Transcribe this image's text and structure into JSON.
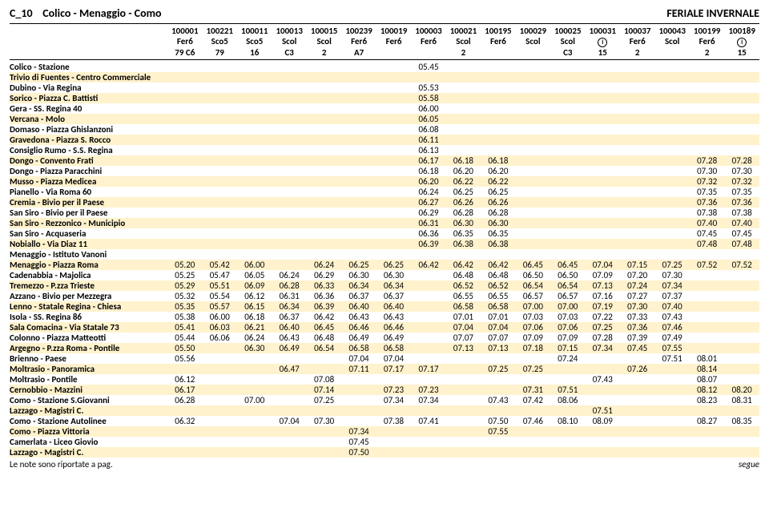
{
  "title_left": "C_10",
  "title_mid": "Colico - Menaggio - Como",
  "title_right": "FERIALE INVERNALE",
  "footer_left": "Le note sono riportate a pag.",
  "footer_right": "segue",
  "highlight_bg": "#fff2cc",
  "run_codes": [
    "100001",
    "100221",
    "100011",
    "100013",
    "100015",
    "100239",
    "100019",
    "100003",
    "100021",
    "100195",
    "100029",
    "100025",
    "100031",
    "100037",
    "100043",
    "100199",
    "100189"
  ],
  "run_type": [
    "Fer6",
    "Sco5",
    "Sco5",
    "Scol",
    "Scol",
    "Fer6",
    "Fer6",
    "Fer6",
    "Scol",
    "Fer6",
    "Scol",
    "Scol",
    "ⓘ",
    "Fer6",
    "Scol",
    "Fer6",
    "ⓘ"
  ],
  "run_note": [
    "79 C6",
    "79",
    "16",
    "C3",
    "2",
    "A7",
    "",
    "",
    "2",
    "",
    "",
    "C3",
    "15",
    "2",
    "",
    "2",
    "15"
  ],
  "rows": [
    {
      "label": "Colico - Stazione",
      "hl": false,
      "v": [
        "",
        "",
        "",
        "",
        "",
        "",
        "",
        "05.45",
        "",
        "",
        "",
        "",
        "",
        "",
        "",
        "",
        ""
      ]
    },
    {
      "label": "Trivio di Fuentes - Centro Commerciale",
      "hl": true,
      "v": [
        "",
        "",
        "",
        "",
        "",
        "",
        "",
        "",
        "",
        "",
        "",
        "",
        "",
        "",
        "",
        "",
        ""
      ]
    },
    {
      "label": "Dubino - Via Regina",
      "hl": false,
      "v": [
        "",
        "",
        "",
        "",
        "",
        "",
        "",
        "05.53",
        "",
        "",
        "",
        "",
        "",
        "",
        "",
        "",
        ""
      ]
    },
    {
      "label": "Sorico - Piazza C. Battisti",
      "hl": true,
      "v": [
        "",
        "",
        "",
        "",
        "",
        "",
        "",
        "05.58",
        "",
        "",
        "",
        "",
        "",
        "",
        "",
        "",
        ""
      ]
    },
    {
      "label": "Gera - SS. Regina 40",
      "hl": false,
      "v": [
        "",
        "",
        "",
        "",
        "",
        "",
        "",
        "06.00",
        "",
        "",
        "",
        "",
        "",
        "",
        "",
        "",
        ""
      ]
    },
    {
      "label": "Vercana - Molo",
      "hl": true,
      "v": [
        "",
        "",
        "",
        "",
        "",
        "",
        "",
        "06.05",
        "",
        "",
        "",
        "",
        "",
        "",
        "",
        "",
        ""
      ]
    },
    {
      "label": "Domaso - Piazza Ghislanzoni",
      "hl": false,
      "v": [
        "",
        "",
        "",
        "",
        "",
        "",
        "",
        "06.08",
        "",
        "",
        "",
        "",
        "",
        "",
        "",
        "",
        ""
      ]
    },
    {
      "label": "Gravedona - Piazza S. Rocco",
      "hl": true,
      "v": [
        "",
        "",
        "",
        "",
        "",
        "",
        "",
        "06.11",
        "",
        "",
        "",
        "",
        "",
        "",
        "",
        "",
        ""
      ]
    },
    {
      "label": "Consiglio Rumo - S.S. Regina",
      "hl": false,
      "v": [
        "",
        "",
        "",
        "",
        "",
        "",
        "",
        "06.13",
        "",
        "",
        "",
        "",
        "",
        "",
        "",
        "",
        ""
      ]
    },
    {
      "label": "Dongo - Convento Frati",
      "hl": true,
      "v": [
        "",
        "",
        "",
        "",
        "",
        "",
        "",
        "06.17",
        "06.18",
        "06.18",
        "",
        "",
        "",
        "",
        "",
        "07.28",
        "07.28"
      ]
    },
    {
      "label": "Dongo - Piazza Paracchini",
      "hl": false,
      "v": [
        "",
        "",
        "",
        "",
        "",
        "",
        "",
        "06.18",
        "06.20",
        "06.20",
        "",
        "",
        "",
        "",
        "",
        "07.30",
        "07.30"
      ]
    },
    {
      "label": "Musso - Piazza Medicea",
      "hl": true,
      "v": [
        "",
        "",
        "",
        "",
        "",
        "",
        "",
        "06.20",
        "06.22",
        "06.22",
        "",
        "",
        "",
        "",
        "",
        "07.32",
        "07.32"
      ]
    },
    {
      "label": "Pianello - Via Roma 60",
      "hl": false,
      "v": [
        "",
        "",
        "",
        "",
        "",
        "",
        "",
        "06.24",
        "06.25",
        "06.25",
        "",
        "",
        "",
        "",
        "",
        "07.35",
        "07.35"
      ]
    },
    {
      "label": "Cremia - Bivio per il Paese",
      "hl": true,
      "v": [
        "",
        "",
        "",
        "",
        "",
        "",
        "",
        "06.27",
        "06.26",
        "06.26",
        "",
        "",
        "",
        "",
        "",
        "07.36",
        "07.36"
      ]
    },
    {
      "label": "San Siro - Bivio per il Paese",
      "hl": false,
      "v": [
        "",
        "",
        "",
        "",
        "",
        "",
        "",
        "06.29",
        "06.28",
        "06.28",
        "",
        "",
        "",
        "",
        "",
        "07.38",
        "07.38"
      ]
    },
    {
      "label": "San Siro - Rezzonico - Municipio",
      "hl": true,
      "v": [
        "",
        "",
        "",
        "",
        "",
        "",
        "",
        "06.31",
        "06.30",
        "06.30",
        "",
        "",
        "",
        "",
        "",
        "07.40",
        "07.40"
      ]
    },
    {
      "label": "San Siro - Acquaseria",
      "hl": false,
      "v": [
        "",
        "",
        "",
        "",
        "",
        "",
        "",
        "06.36",
        "06.35",
        "06.35",
        "",
        "",
        "",
        "",
        "",
        "07.45",
        "07.45"
      ]
    },
    {
      "label": "Nobiallo - Via Diaz 11",
      "hl": true,
      "v": [
        "",
        "",
        "",
        "",
        "",
        "",
        "",
        "06.39",
        "06.38",
        "06.38",
        "",
        "",
        "",
        "",
        "",
        "07.48",
        "07.48"
      ]
    },
    {
      "label": "Menaggio - Istituto Vanoni",
      "hl": false,
      "v": [
        "",
        "",
        "",
        "",
        "",
        "",
        "",
        "",
        "",
        "",
        "",
        "",
        "",
        "",
        "",
        "",
        ""
      ]
    },
    {
      "label": "Menaggio - Piazza Roma",
      "hl": true,
      "v": [
        "05.20",
        "05.42",
        "06.00",
        "",
        "06.24",
        "06.25",
        "06.25",
        "06.42",
        "06.42",
        "06.42",
        "06.45",
        "06.45",
        "07.04",
        "07.15",
        "07.25",
        "07.52",
        "07.52"
      ]
    },
    {
      "label": "Cadenabbia - Majolica",
      "hl": false,
      "v": [
        "05.25",
        "05.47",
        "06.05",
        "06.24",
        "06.29",
        "06.30",
        "06.30",
        "",
        "06.48",
        "06.48",
        "06.50",
        "06.50",
        "07.09",
        "07.20",
        "07.30",
        "",
        ""
      ]
    },
    {
      "label": "Tremezzo - P.zza Trieste",
      "hl": true,
      "v": [
        "05.29",
        "05.51",
        "06.09",
        "06.28",
        "06.33",
        "06.34",
        "06.34",
        "",
        "06.52",
        "06.52",
        "06.54",
        "06.54",
        "07.13",
        "07.24",
        "07.34",
        "",
        ""
      ]
    },
    {
      "label": "Azzano - Bivio per Mezzegra",
      "hl": false,
      "v": [
        "05.32",
        "05.54",
        "06.12",
        "06.31",
        "06.36",
        "06.37",
        "06.37",
        "",
        "06.55",
        "06.55",
        "06.57",
        "06.57",
        "07.16",
        "07.27",
        "07.37",
        "",
        ""
      ]
    },
    {
      "label": "Lenno - Statale Regina - Chiesa",
      "hl": true,
      "v": [
        "05.35",
        "05.57",
        "06.15",
        "06.34",
        "06.39",
        "06.40",
        "06.40",
        "",
        "06.58",
        "06.58",
        "07.00",
        "07.00",
        "07.19",
        "07.30",
        "07.40",
        "",
        ""
      ]
    },
    {
      "label": "Isola - SS. Regina 86",
      "hl": false,
      "v": [
        "05.38",
        "06.00",
        "06.18",
        "06.37",
        "06.42",
        "06.43",
        "06.43",
        "",
        "07.01",
        "07.01",
        "07.03",
        "07.03",
        "07.22",
        "07.33",
        "07.43",
        "",
        ""
      ]
    },
    {
      "label": "Sala Comacina - Via Statale 73",
      "hl": true,
      "v": [
        "05.41",
        "06.03",
        "06.21",
        "06.40",
        "06.45",
        "06.46",
        "06.46",
        "",
        "07.04",
        "07.04",
        "07.06",
        "07.06",
        "07.25",
        "07.36",
        "07.46",
        "",
        ""
      ]
    },
    {
      "label": "Colonno - Piazza Matteotti",
      "hl": false,
      "v": [
        "05.44",
        "06.06",
        "06.24",
        "06.43",
        "06.48",
        "06.49",
        "06.49",
        "",
        "07.07",
        "07.07",
        "07.09",
        "07.09",
        "07.28",
        "07.39",
        "07.49",
        "",
        ""
      ]
    },
    {
      "label": "Argegno - P.zza Roma - Pontile",
      "hl": true,
      "v": [
        "05.50",
        "",
        "06.30",
        "06.49",
        "06.54",
        "06.58",
        "06.58",
        "",
        "07.13",
        "07.13",
        "07.18",
        "07.15",
        "07.34",
        "07.45",
        "07.55",
        "",
        ""
      ]
    },
    {
      "label": "Brienno - Paese",
      "hl": false,
      "v": [
        "05.56",
        "",
        "",
        "",
        "",
        "07.04",
        "07.04",
        "",
        "",
        "",
        "",
        "07.24",
        "",
        "",
        "07.51",
        "08.01",
        ""
      ]
    },
    {
      "label": "Moltrasio - Panoramica",
      "hl": true,
      "v": [
        "",
        "",
        "",
        "06.47",
        "",
        "07.11",
        "07.17",
        "07.17",
        "",
        "07.25",
        "07.25",
        "",
        "",
        "07.26",
        "",
        "08.14",
        ""
      ]
    },
    {
      "label": "Moltrasio - Pontile",
      "hl": false,
      "v": [
        "06.12",
        "",
        "",
        "",
        "07.08",
        "",
        "",
        "",
        "",
        "",
        "",
        "",
        "07.43",
        "",
        "",
        "08.07",
        ""
      ]
    },
    {
      "label": "Cernobbio - Mazzini",
      "hl": true,
      "v": [
        "06.17",
        "",
        "",
        "",
        "07.14",
        "",
        "07.23",
        "07.23",
        "",
        "",
        "07.31",
        "07.51",
        "",
        "",
        "",
        "08.12",
        "08.20"
      ]
    },
    {
      "label": "Como - Stazione S.Giovanni",
      "hl": false,
      "v": [
        "06.28",
        "",
        "07.00",
        "",
        "07.25",
        "",
        "07.34",
        "07.34",
        "",
        "07.43",
        "07.42",
        "08.06",
        "",
        "",
        "",
        "08.23",
        "08.31"
      ]
    },
    {
      "label": "Lazzago - Magistri C.",
      "hl": true,
      "v": [
        "",
        "",
        "",
        "",
        "",
        "",
        "",
        "",
        "",
        "",
        "",
        "",
        "07.51",
        "",
        "",
        "",
        ""
      ]
    },
    {
      "label": "Como - Stazione Autolinee",
      "hl": false,
      "v": [
        "06.32",
        "",
        "",
        "07.04",
        "07.30",
        "",
        "07.38",
        "07.41",
        "",
        "07.50",
        "07.46",
        "08.10",
        "08.09",
        "",
        "",
        "08.27",
        "08.35"
      ]
    },
    {
      "label": "Como - Piazza Vittoria",
      "hl": true,
      "v": [
        "",
        "",
        "",
        "",
        "",
        "07.34",
        "",
        "",
        "",
        "07.55",
        "",
        "",
        "",
        "",
        "",
        "",
        ""
      ]
    },
    {
      "label": "Camerlata - Liceo Giovio",
      "hl": false,
      "v": [
        "",
        "",
        "",
        "",
        "",
        "07.45",
        "",
        "",
        "",
        "",
        "",
        "",
        "",
        "",
        "",
        "",
        ""
      ]
    },
    {
      "label": "Lazzago - Magistri C.",
      "hl": true,
      "v": [
        "",
        "",
        "",
        "",
        "",
        "07.50",
        "",
        "",
        "",
        "",
        "",
        "",
        "",
        "",
        "",
        "",
        ""
      ]
    }
  ]
}
